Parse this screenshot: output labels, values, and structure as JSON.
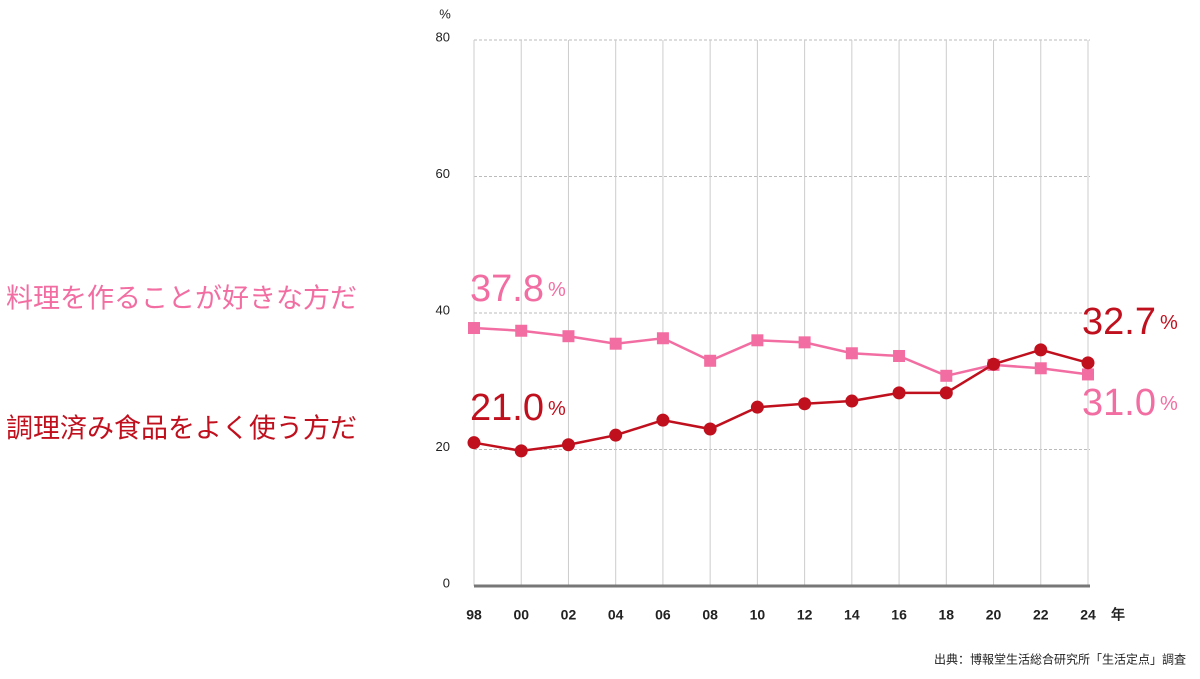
{
  "chart_data": {
    "type": "line",
    "categories": [
      "98",
      "00",
      "02",
      "04",
      "06",
      "08",
      "10",
      "12",
      "14",
      "16",
      "18",
      "20",
      "22",
      "24"
    ],
    "series": [
      {
        "name": "料理を作ることが好きな方だ",
        "color": "#f26ea2",
        "marker": "square",
        "values": [
          37.8,
          37.4,
          36.6,
          35.5,
          36.3,
          33.0,
          36.0,
          35.7,
          34.1,
          33.7,
          30.8,
          32.4,
          31.9,
          31.0
        ],
        "value_labels": [
          "37.8%",
          null,
          null,
          null,
          null,
          null,
          null,
          null,
          null,
          null,
          null,
          null,
          null,
          "31.0%"
        ]
      },
      {
        "name": "調理済み食品をよく使う方だ",
        "color": "#c0101e",
        "marker": "circle",
        "values": [
          21.0,
          19.8,
          20.7,
          22.1,
          24.3,
          23.0,
          26.2,
          26.7,
          27.1,
          28.3,
          28.3,
          32.5,
          34.6,
          32.7
        ],
        "value_labels": [
          "21.0%",
          null,
          null,
          null,
          null,
          null,
          null,
          null,
          null,
          null,
          null,
          null,
          null,
          "32.7%"
        ]
      }
    ],
    "ylim": [
      0,
      80
    ],
    "yticks": [
      0,
      20,
      40,
      60,
      80
    ],
    "y_unit": "%",
    "x_unit": "年",
    "source": "出典：博報堂生活総合研究所「生活定点」調査",
    "grid": true
  }
}
